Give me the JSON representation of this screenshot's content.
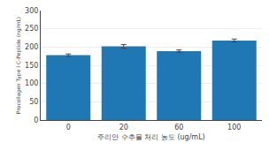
{
  "chart_data": {
    "type": "bar",
    "categories": [
      "0",
      "20",
      "60",
      "100"
    ],
    "values": [
      178,
      202,
      189,
      218
    ],
    "errors": [
      3,
      5,
      3,
      4
    ],
    "xlabel": "주리안 수추물 처리 농도 (ug/mL)",
    "ylabel": "Procollagen Type I C-Peptide (ng/mL)",
    "ylim": [
      0,
      300
    ],
    "yticks": [
      0,
      50,
      100,
      150,
      200,
      250,
      300
    ],
    "grid": true
  }
}
